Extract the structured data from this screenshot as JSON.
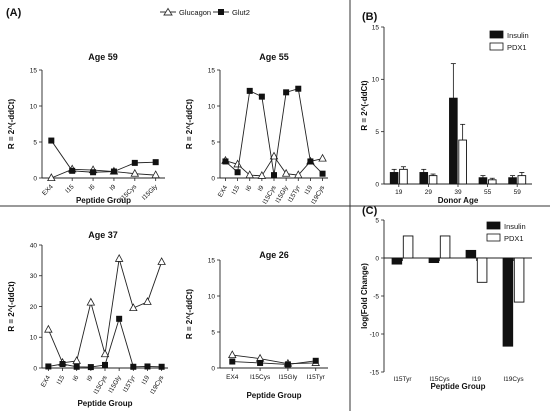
{
  "panel_labels": {
    "a": "(A)",
    "b": "(B)",
    "c": "(C)"
  },
  "legend_a": {
    "glucagon": "Glucagon",
    "glut2": "Glut2"
  },
  "legend_bc": {
    "insulin": "Insulin",
    "pdx1": "PDX1"
  },
  "chart_data": [
    {
      "id": "age59",
      "type": "line",
      "title": "Age 59",
      "xlabel": "Peptide Group",
      "ylabel": "R = 2^(-ddCt)",
      "categories": [
        "EX4",
        "I15",
        "I6",
        "I9",
        "I15Cys",
        "I15Gly"
      ],
      "ylim": [
        0,
        15
      ],
      "yticks": [
        0,
        5,
        10,
        15
      ],
      "series": [
        {
          "name": "Glucagon",
          "marker": "triangle",
          "values": [
            0.0,
            1.2,
            1.1,
            0.9,
            0.6,
            0.4
          ]
        },
        {
          "name": "Glut2",
          "marker": "square",
          "values": [
            5.2,
            1.0,
            0.8,
            0.9,
            2.1,
            2.2
          ]
        }
      ]
    },
    {
      "id": "age55",
      "type": "line",
      "title": "Age 55",
      "xlabel": "",
      "ylabel": "",
      "categories": [
        "EX4",
        "I15",
        "I6",
        "I9",
        "I15Cys",
        "I15Gly",
        "I15Tyr",
        "I19",
        "I19Cys"
      ],
      "ylim": [
        0,
        15
      ],
      "yticks": [
        0,
        5,
        10,
        15
      ],
      "series": [
        {
          "name": "Glucagon",
          "marker": "triangle",
          "values": [
            2.4,
            1.9,
            0.4,
            0.3,
            3.0,
            0.6,
            0.4,
            2.3,
            2.7
          ]
        },
        {
          "name": "Glut2",
          "marker": "square",
          "values": [
            2.3,
            0.8,
            12.1,
            11.3,
            0.4,
            11.9,
            12.4,
            2.3,
            0.6
          ]
        }
      ]
    },
    {
      "id": "age37",
      "type": "line",
      "title": "Age 37",
      "xlabel": "Peptide Group",
      "ylabel": "R = 2^(-ddCt)",
      "categories": [
        "EX4",
        "I15",
        "I6",
        "I9",
        "I15Cys",
        "I15Gly",
        "I15Tyr",
        "I19",
        "I19Cys"
      ],
      "ylim": [
        0,
        40
      ],
      "yticks": [
        0,
        10,
        20,
        30,
        40
      ],
      "series": [
        {
          "name": "Glucagon",
          "marker": "triangle",
          "values": [
            12.5,
            1.7,
            2.3,
            21.3,
            4.5,
            35.5,
            19.5,
            21.5,
            34.5
          ]
        },
        {
          "name": "Glut2",
          "marker": "square",
          "values": [
            0.5,
            1.3,
            0.4,
            0.3,
            1.0,
            16.0,
            0.4,
            0.5,
            0.4
          ]
        }
      ]
    },
    {
      "id": "age26",
      "type": "line",
      "title": "Age 26",
      "xlabel": "Peptide Group",
      "ylabel": "R = 2^(-ddCt)",
      "categories": [
        "EX4",
        "I15Cys",
        "I15Gly",
        "I15Tyr"
      ],
      "ylim": [
        0,
        15
      ],
      "yticks": [
        0,
        5,
        10,
        15
      ],
      "series": [
        {
          "name": "Glucagon",
          "marker": "triangle",
          "values": [
            1.8,
            1.3,
            0.6,
            0.7
          ]
        },
        {
          "name": "Glut2",
          "marker": "square",
          "values": [
            0.9,
            0.7,
            0.5,
            1.0
          ]
        }
      ]
    },
    {
      "id": "donor",
      "type": "bar",
      "title": "",
      "xlabel": "Donor Age",
      "ylabel": "R = 2^(-ddCt)",
      "categories": [
        "19",
        "29",
        "39",
        "55",
        "59"
      ],
      "ylim": [
        0,
        15
      ],
      "yticks": [
        0,
        5,
        10,
        15
      ],
      "series": [
        {
          "name": "Insulin",
          "fill": "#111111",
          "values": [
            1.1,
            1.1,
            8.2,
            0.6,
            0.6
          ],
          "errors": [
            0.3,
            0.3,
            3.3,
            0.2,
            0.2
          ]
        },
        {
          "name": "PDX1",
          "fill": "#ffffff",
          "values": [
            1.4,
            0.8,
            4.2,
            0.4,
            0.8
          ],
          "errors": [
            0.25,
            0.15,
            1.5,
            0.15,
            0.3
          ]
        }
      ]
    },
    {
      "id": "fold",
      "type": "bar",
      "title": "",
      "xlabel": "Peptide Group",
      "ylabel": "log(Fold Change)",
      "categories": [
        "I15Tyr",
        "I15Cys",
        "I19",
        "I19Cys"
      ],
      "ylim": [
        -15,
        5
      ],
      "yticks": [
        -15,
        -10,
        -5,
        0,
        5
      ],
      "series": [
        {
          "name": "Insulin",
          "fill": "#111111",
          "values": [
            -0.8,
            -0.6,
            1.0,
            -11.6
          ]
        },
        {
          "name": "PDX1",
          "fill": "#ffffff",
          "values": [
            2.9,
            2.9,
            -3.2,
            -5.8
          ]
        }
      ]
    }
  ]
}
